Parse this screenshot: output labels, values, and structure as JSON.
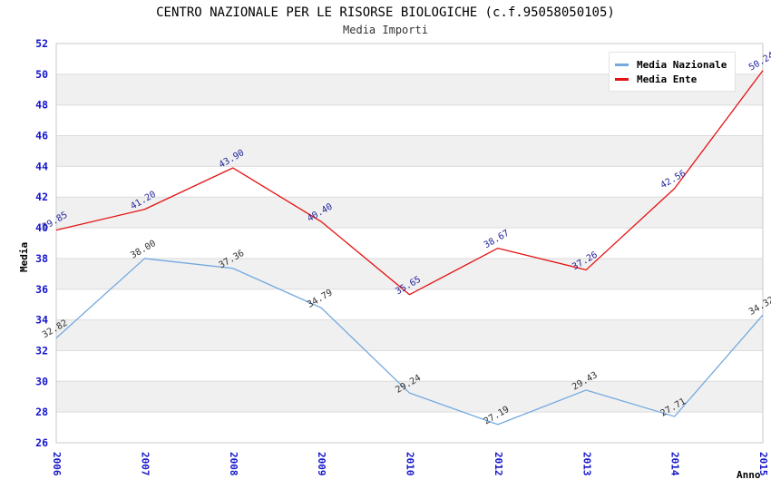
{
  "header": {
    "title": "CENTRO NAZIONALE PER LE RISORSE BIOLOGICHE (c.f.95058050105)",
    "subtitle": "Media Importi"
  },
  "legend": {
    "items": [
      {
        "label": "Media Nazionale",
        "color": "#74AADF"
      },
      {
        "label": "Media Ente",
        "color": "#E51212"
      }
    ]
  },
  "chart_data": {
    "type": "line",
    "title": "CENTRO NAZIONALE PER LE RISORSE BIOLOGICHE (c.f.95058050105)",
    "subtitle": "Media Importi",
    "xlabel": "Anno",
    "ylabel": "Media",
    "x": [
      "2006",
      "2007",
      "2008",
      "2009",
      "2010",
      "2012",
      "2013",
      "2014",
      "2015"
    ],
    "series": [
      {
        "name": "Media Nazionale",
        "color": "#74AADF",
        "label_color": "#303030",
        "values": [
          32.82,
          38.0,
          37.36,
          34.79,
          29.24,
          27.19,
          29.43,
          27.71,
          34.32
        ]
      },
      {
        "name": "Media Ente",
        "color": "#E51212",
        "label_color": "#24249B",
        "values": [
          39.85,
          41.2,
          43.9,
          40.4,
          35.65,
          38.67,
          37.26,
          42.56,
          50.24
        ]
      }
    ],
    "ylim": [
      26,
      52
    ],
    "ytick_step": 2,
    "grid": true,
    "legend_position": "top-right",
    "band_color": "#F0F0F0",
    "grid_color": "#DCDCDC",
    "frame_color": "#C8C8C8",
    "tick_color": "#1414CC"
  }
}
